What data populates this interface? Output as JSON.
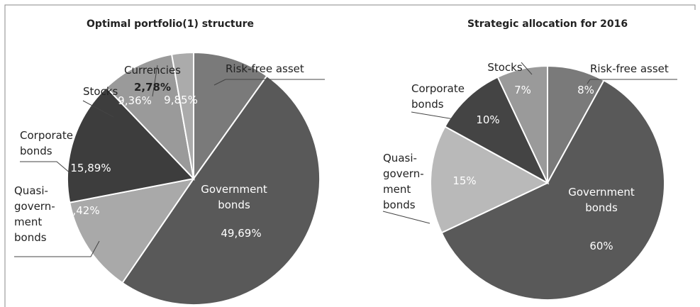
{
  "chart_data": [
    {
      "type": "pie",
      "title": "Optimal portfolio(1) structure",
      "categories": [
        "Risk-free asset",
        "Government\nbonds",
        "Quasi-\ngovern-\nment\nbonds",
        "Corporate\nbonds",
        "Stocks",
        "Currencies"
      ],
      "values": [
        9.85,
        49.69,
        12.42,
        15.89,
        9.36,
        2.78
      ],
      "value_labels": [
        "9,85%",
        "49,69%",
        "12,42%",
        "15,89%",
        "9,36%",
        "2,78%"
      ],
      "colors": [
        "#7a7a7a",
        "#595959",
        "#a9a9a9",
        "#3d3d3d",
        "#9a9a9a",
        "#ababab"
      ]
    },
    {
      "type": "pie",
      "title": "Strategic allocation for 2016",
      "categories": [
        "Risk-free asset",
        "Government\nbonds",
        "Quasi-\ngovern-\nment\nbonds",
        "Corporate\nbonds",
        "Stocks"
      ],
      "values": [
        8,
        60,
        15,
        10,
        7
      ],
      "value_labels": [
        "8%",
        "60%",
        "15%",
        "10%",
        "7%"
      ],
      "colors": [
        "#7a7a7a",
        "#595959",
        "#b9b9b9",
        "#444444",
        "#9a9a9a"
      ]
    }
  ]
}
